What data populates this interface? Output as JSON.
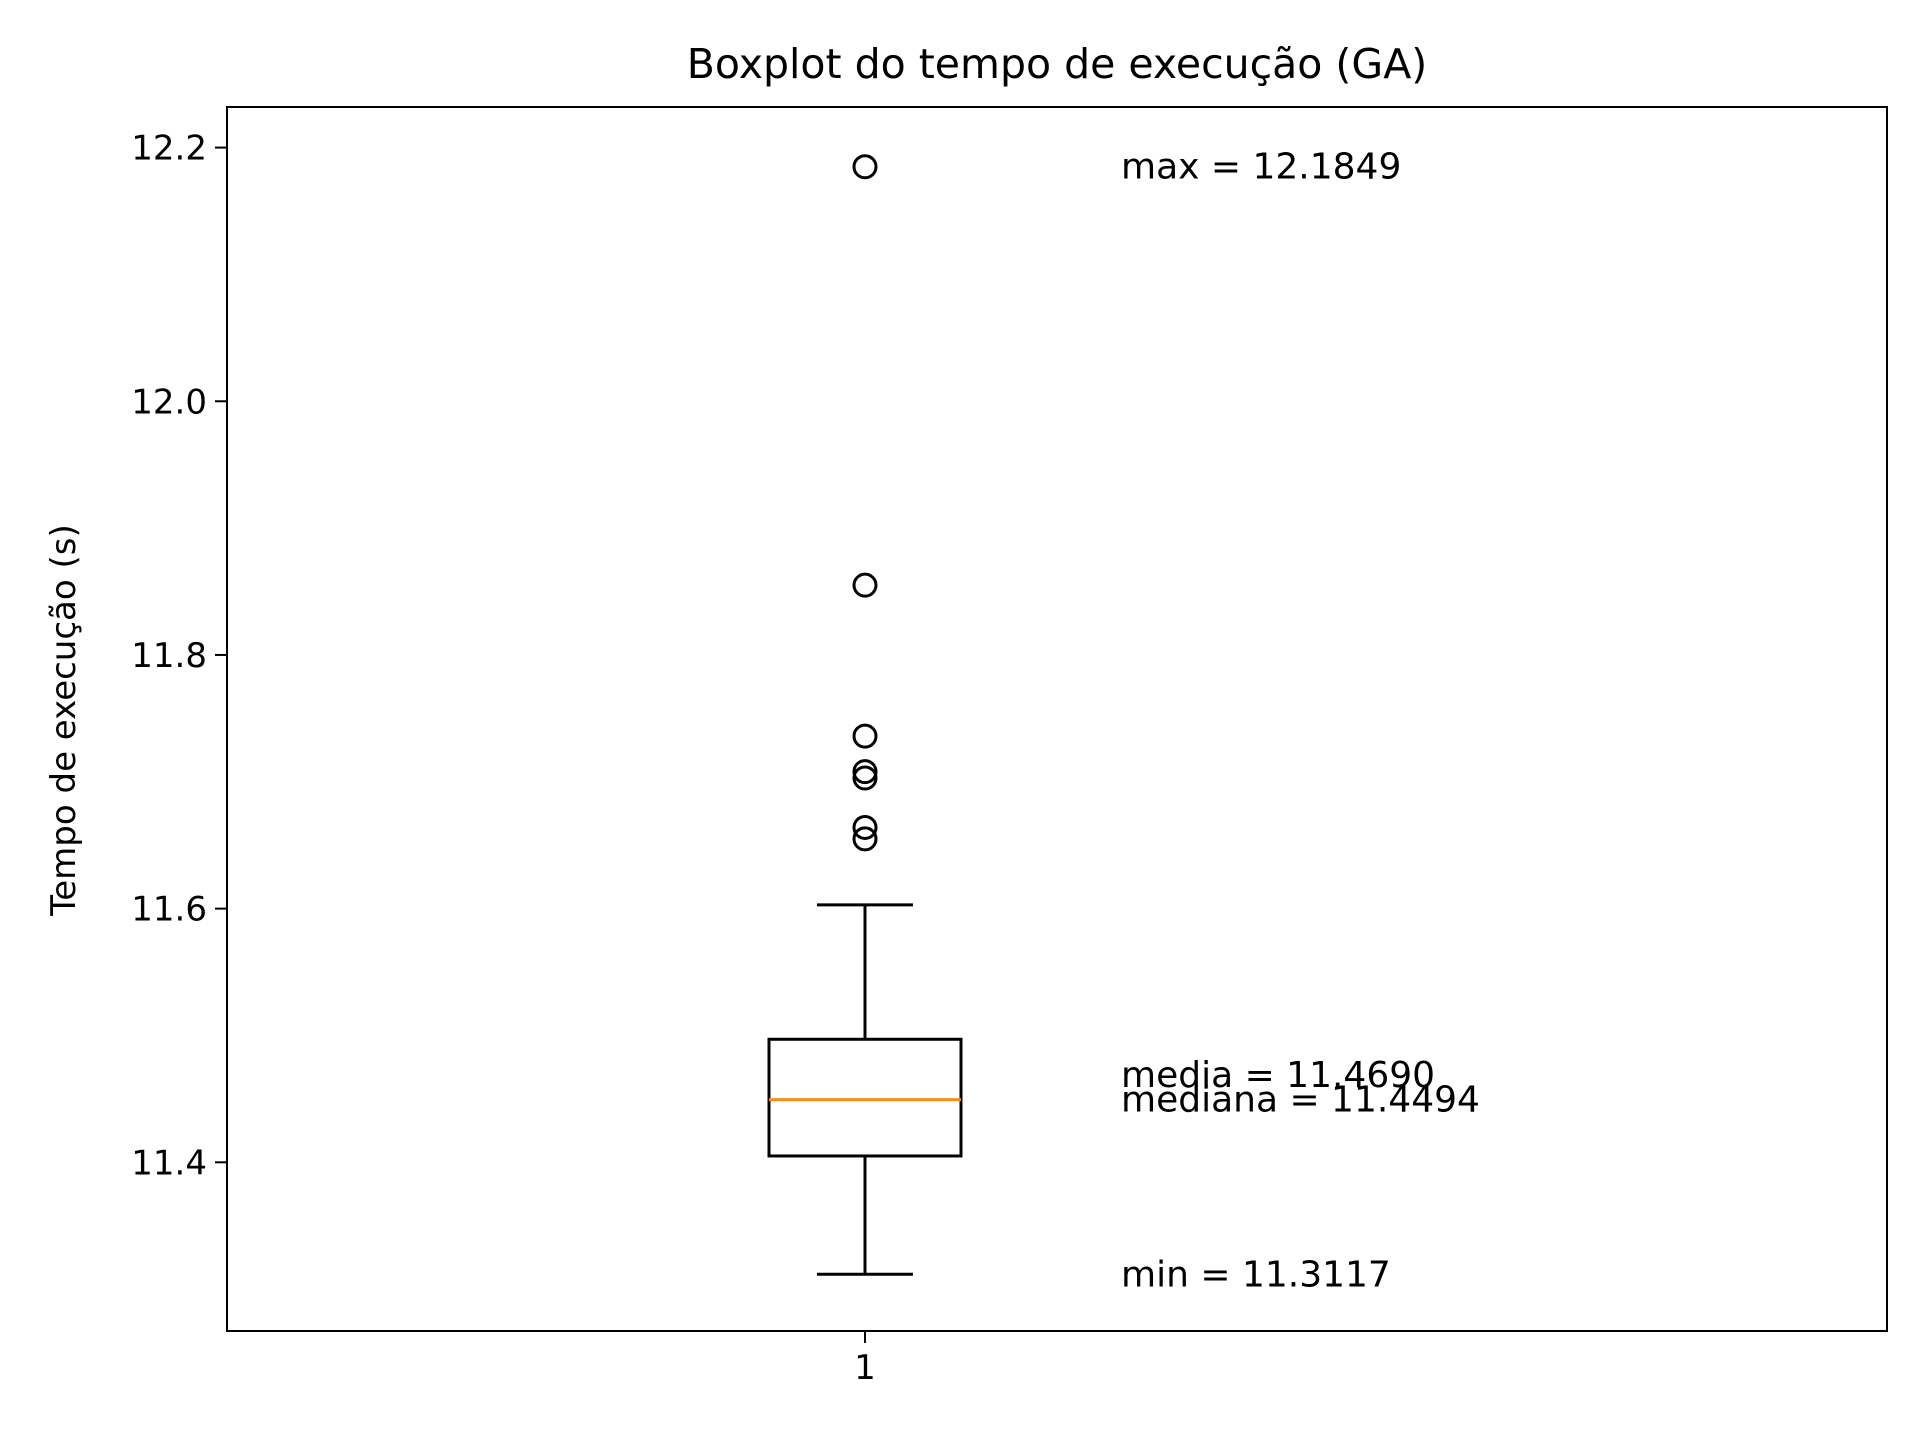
{
  "chart_data": {
    "type": "box",
    "title": "Boxplot do tempo de execução (GA)",
    "xlabel": "",
    "ylabel": "Tempo de execução (s)",
    "categories": [
      "1"
    ],
    "ylim": [
      11.267,
      12.232
    ],
    "yticks": [
      11.4,
      11.6,
      11.8,
      12.0,
      12.2
    ],
    "ytick_labels": [
      "11.4",
      "11.6",
      "11.8",
      "12.0",
      "12.2"
    ],
    "grid": false,
    "box": {
      "whisker_low": 11.3117,
      "q1": 11.405,
      "median": 11.4494,
      "q3": 11.497,
      "whisker_high": 11.603
    },
    "outliers": [
      11.655,
      11.664,
      11.703,
      11.708,
      11.736,
      11.855,
      12.1849
    ],
    "annotations": [
      {
        "text": "max = 12.1849",
        "y": 12.1849
      },
      {
        "text": "media = 11.4690",
        "y": 11.469
      },
      {
        "text": "mediana = 11.4494",
        "y": 11.4494
      },
      {
        "text": "min = 11.3117",
        "y": 11.3117
      }
    ],
    "colors": {
      "box": "#000000",
      "median": "#f28e1c",
      "outlier": "#000000"
    }
  }
}
